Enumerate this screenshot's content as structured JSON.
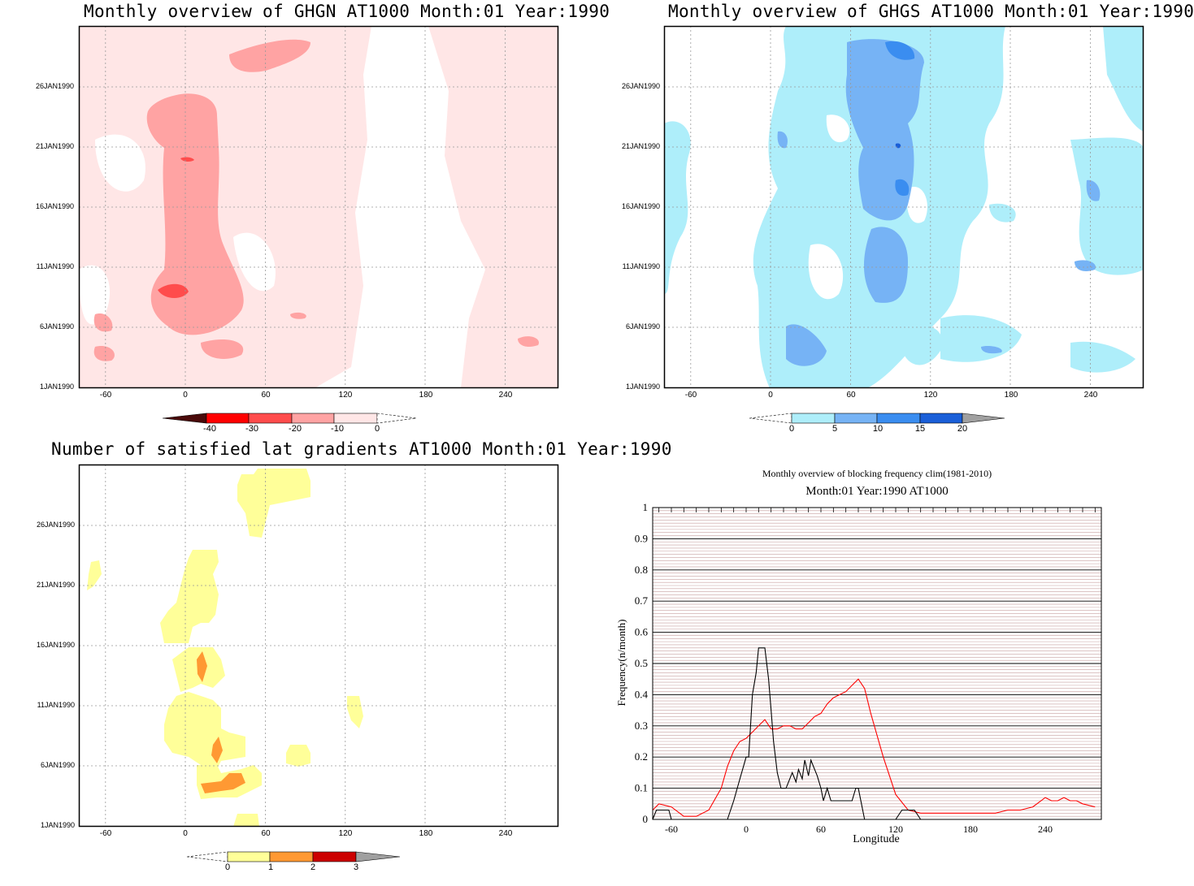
{
  "panels": {
    "ghgn": {
      "title": "Monthly overview of GHGN AT1000 Month:01 Year:1990",
      "yticks": [
        "26JAN1990",
        "21JAN1990",
        "16JAN1990",
        "11JAN1990",
        "6JAN1990",
        "1JAN1990"
      ],
      "xticks": [
        "-60",
        "0",
        "60",
        "120",
        "180",
        "240"
      ],
      "colorbar": {
        "labels": [
          "-40",
          "-30",
          "-20",
          "-10",
          "0"
        ],
        "colors": [
          "#4a0a0a",
          "#ff0000",
          "#ff4c4c",
          "#ffa3a3",
          "#ffe6e6"
        ]
      }
    },
    "ghgs": {
      "title": "Monthly overview of GHGS AT1000 Month:01 Year:1990",
      "yticks": [
        "26JAN1990",
        "21JAN1990",
        "16JAN1990",
        "11JAN1990",
        "6JAN1990",
        "1JAN1990"
      ],
      "xticks": [
        "-60",
        "0",
        "60",
        "120",
        "180",
        "240"
      ],
      "colorbar": {
        "labels": [
          "0",
          "5",
          "10",
          "15",
          "20"
        ],
        "colors": [
          "#aeeefa",
          "#76b3f5",
          "#3a8df0",
          "#1a5fd8",
          "#a0a0a0"
        ]
      }
    },
    "gradients": {
      "title": "Number of satisfied lat gradients AT1000 Month:01 Year:1990",
      "yticks": [
        "26JAN1990",
        "21JAN1990",
        "16JAN1990",
        "11JAN1990",
        "6JAN1990",
        "1JAN1990"
      ],
      "xticks": [
        "-60",
        "0",
        "60",
        "120",
        "180",
        "240"
      ],
      "colorbar": {
        "labels": [
          "0",
          "1",
          "2",
          "3"
        ],
        "colors": [
          "#ffff99",
          "#ff9933",
          "#cc0000",
          "#a0a0a0"
        ]
      }
    },
    "frequency": {
      "title": "Monthly overview of blocking frequency clim(1981-2010)",
      "subtitle": "Month:01 Year:1990  AT1000",
      "ylabel": "Frequency(n/month)",
      "xlabel": "Longitude",
      "yticks": [
        "0",
        "0.1",
        "0.2",
        "0.3",
        "0.4",
        "0.5",
        "0.6",
        "0.7",
        "0.8",
        "0.9",
        "1"
      ],
      "xticks": [
        "-60",
        "0",
        "60",
        "120",
        "180",
        "240"
      ]
    }
  },
  "chart_data": [
    {
      "type": "heatmap",
      "title": "Monthly overview of GHGN AT1000 Month:01 Year:1990",
      "x_range": [
        -75,
        285
      ],
      "y_range": [
        "1JAN1990",
        "31JAN1990"
      ],
      "levels": [
        -40,
        -30,
        -20,
        -10,
        0
      ],
      "grid": true
    },
    {
      "type": "heatmap",
      "title": "Monthly overview of GHGS AT1000 Month:01 Year:1990",
      "x_range": [
        -75,
        285
      ],
      "y_range": [
        "1JAN1990",
        "31JAN1990"
      ],
      "levels": [
        0,
        5,
        10,
        15,
        20
      ],
      "grid": true
    },
    {
      "type": "heatmap",
      "title": "Number of satisfied lat gradients AT1000 Month:01 Year:1990",
      "x_range": [
        -75,
        285
      ],
      "y_range": [
        "1JAN1990",
        "31JAN1990"
      ],
      "levels": [
        0,
        1,
        2,
        3
      ],
      "grid": true
    },
    {
      "type": "line",
      "title": "Monthly overview of blocking frequency clim(1981-2010)",
      "xlabel": "Longitude",
      "ylabel": "Frequency(n/month)",
      "xlim": [
        -75,
        285
      ],
      "ylim": [
        0,
        1
      ],
      "series": [
        {
          "color": "#ff0000",
          "x": [
            -75,
            -70,
            -60,
            -50,
            -40,
            -30,
            -20,
            -15,
            -10,
            -5,
            0,
            5,
            10,
            15,
            20,
            25,
            30,
            35,
            40,
            45,
            50,
            55,
            60,
            65,
            70,
            75,
            80,
            85,
            90,
            95,
            100,
            110,
            120,
            130,
            140,
            150,
            160,
            170,
            180,
            190,
            200,
            210,
            220,
            230,
            240,
            245,
            250,
            255,
            260,
            265,
            270,
            280
          ],
          "y": [
            0.03,
            0.05,
            0.04,
            0.01,
            0.01,
            0.03,
            0.1,
            0.17,
            0.22,
            0.25,
            0.26,
            0.28,
            0.3,
            0.32,
            0.29,
            0.29,
            0.3,
            0.3,
            0.29,
            0.29,
            0.31,
            0.33,
            0.34,
            0.37,
            0.39,
            0.4,
            0.41,
            0.43,
            0.45,
            0.42,
            0.34,
            0.2,
            0.08,
            0.03,
            0.02,
            0.02,
            0.02,
            0.02,
            0.02,
            0.02,
            0.02,
            0.03,
            0.03,
            0.04,
            0.07,
            0.06,
            0.06,
            0.07,
            0.06,
            0.06,
            0.05,
            0.04
          ]
        },
        {
          "color": "#000000",
          "x": [
            -75,
            -72,
            -68,
            -62,
            -60,
            -55,
            -50,
            -40,
            -30,
            -20,
            -15,
            -10,
            -5,
            0,
            2,
            5,
            8,
            10,
            12,
            15,
            18,
            20,
            22,
            25,
            28,
            30,
            32,
            35,
            37,
            40,
            42,
            45,
            47,
            50,
            52,
            55,
            57,
            60,
            62,
            65,
            68,
            70,
            75,
            80,
            85,
            88,
            90,
            92,
            95,
            100,
            110,
            115,
            120,
            125,
            130,
            135,
            140,
            150,
            180,
            240,
            280
          ],
          "y": [
            0.0,
            0.03,
            0.03,
            0.03,
            0.0,
            0.0,
            0.0,
            0.0,
            0.0,
            0.0,
            0.0,
            0.06,
            0.13,
            0.2,
            0.2,
            0.4,
            0.47,
            0.55,
            0.55,
            0.55,
            0.45,
            0.35,
            0.25,
            0.15,
            0.1,
            0.1,
            0.1,
            0.13,
            0.15,
            0.12,
            0.16,
            0.13,
            0.19,
            0.14,
            0.19,
            0.16,
            0.14,
            0.1,
            0.06,
            0.1,
            0.06,
            0.06,
            0.06,
            0.06,
            0.06,
            0.1,
            0.1,
            0.06,
            0.0,
            0.0,
            0.0,
            0.0,
            0.0,
            0.03,
            0.03,
            0.03,
            0.0,
            0.0,
            0.0,
            0.0,
            0.0
          ]
        }
      ]
    }
  ]
}
